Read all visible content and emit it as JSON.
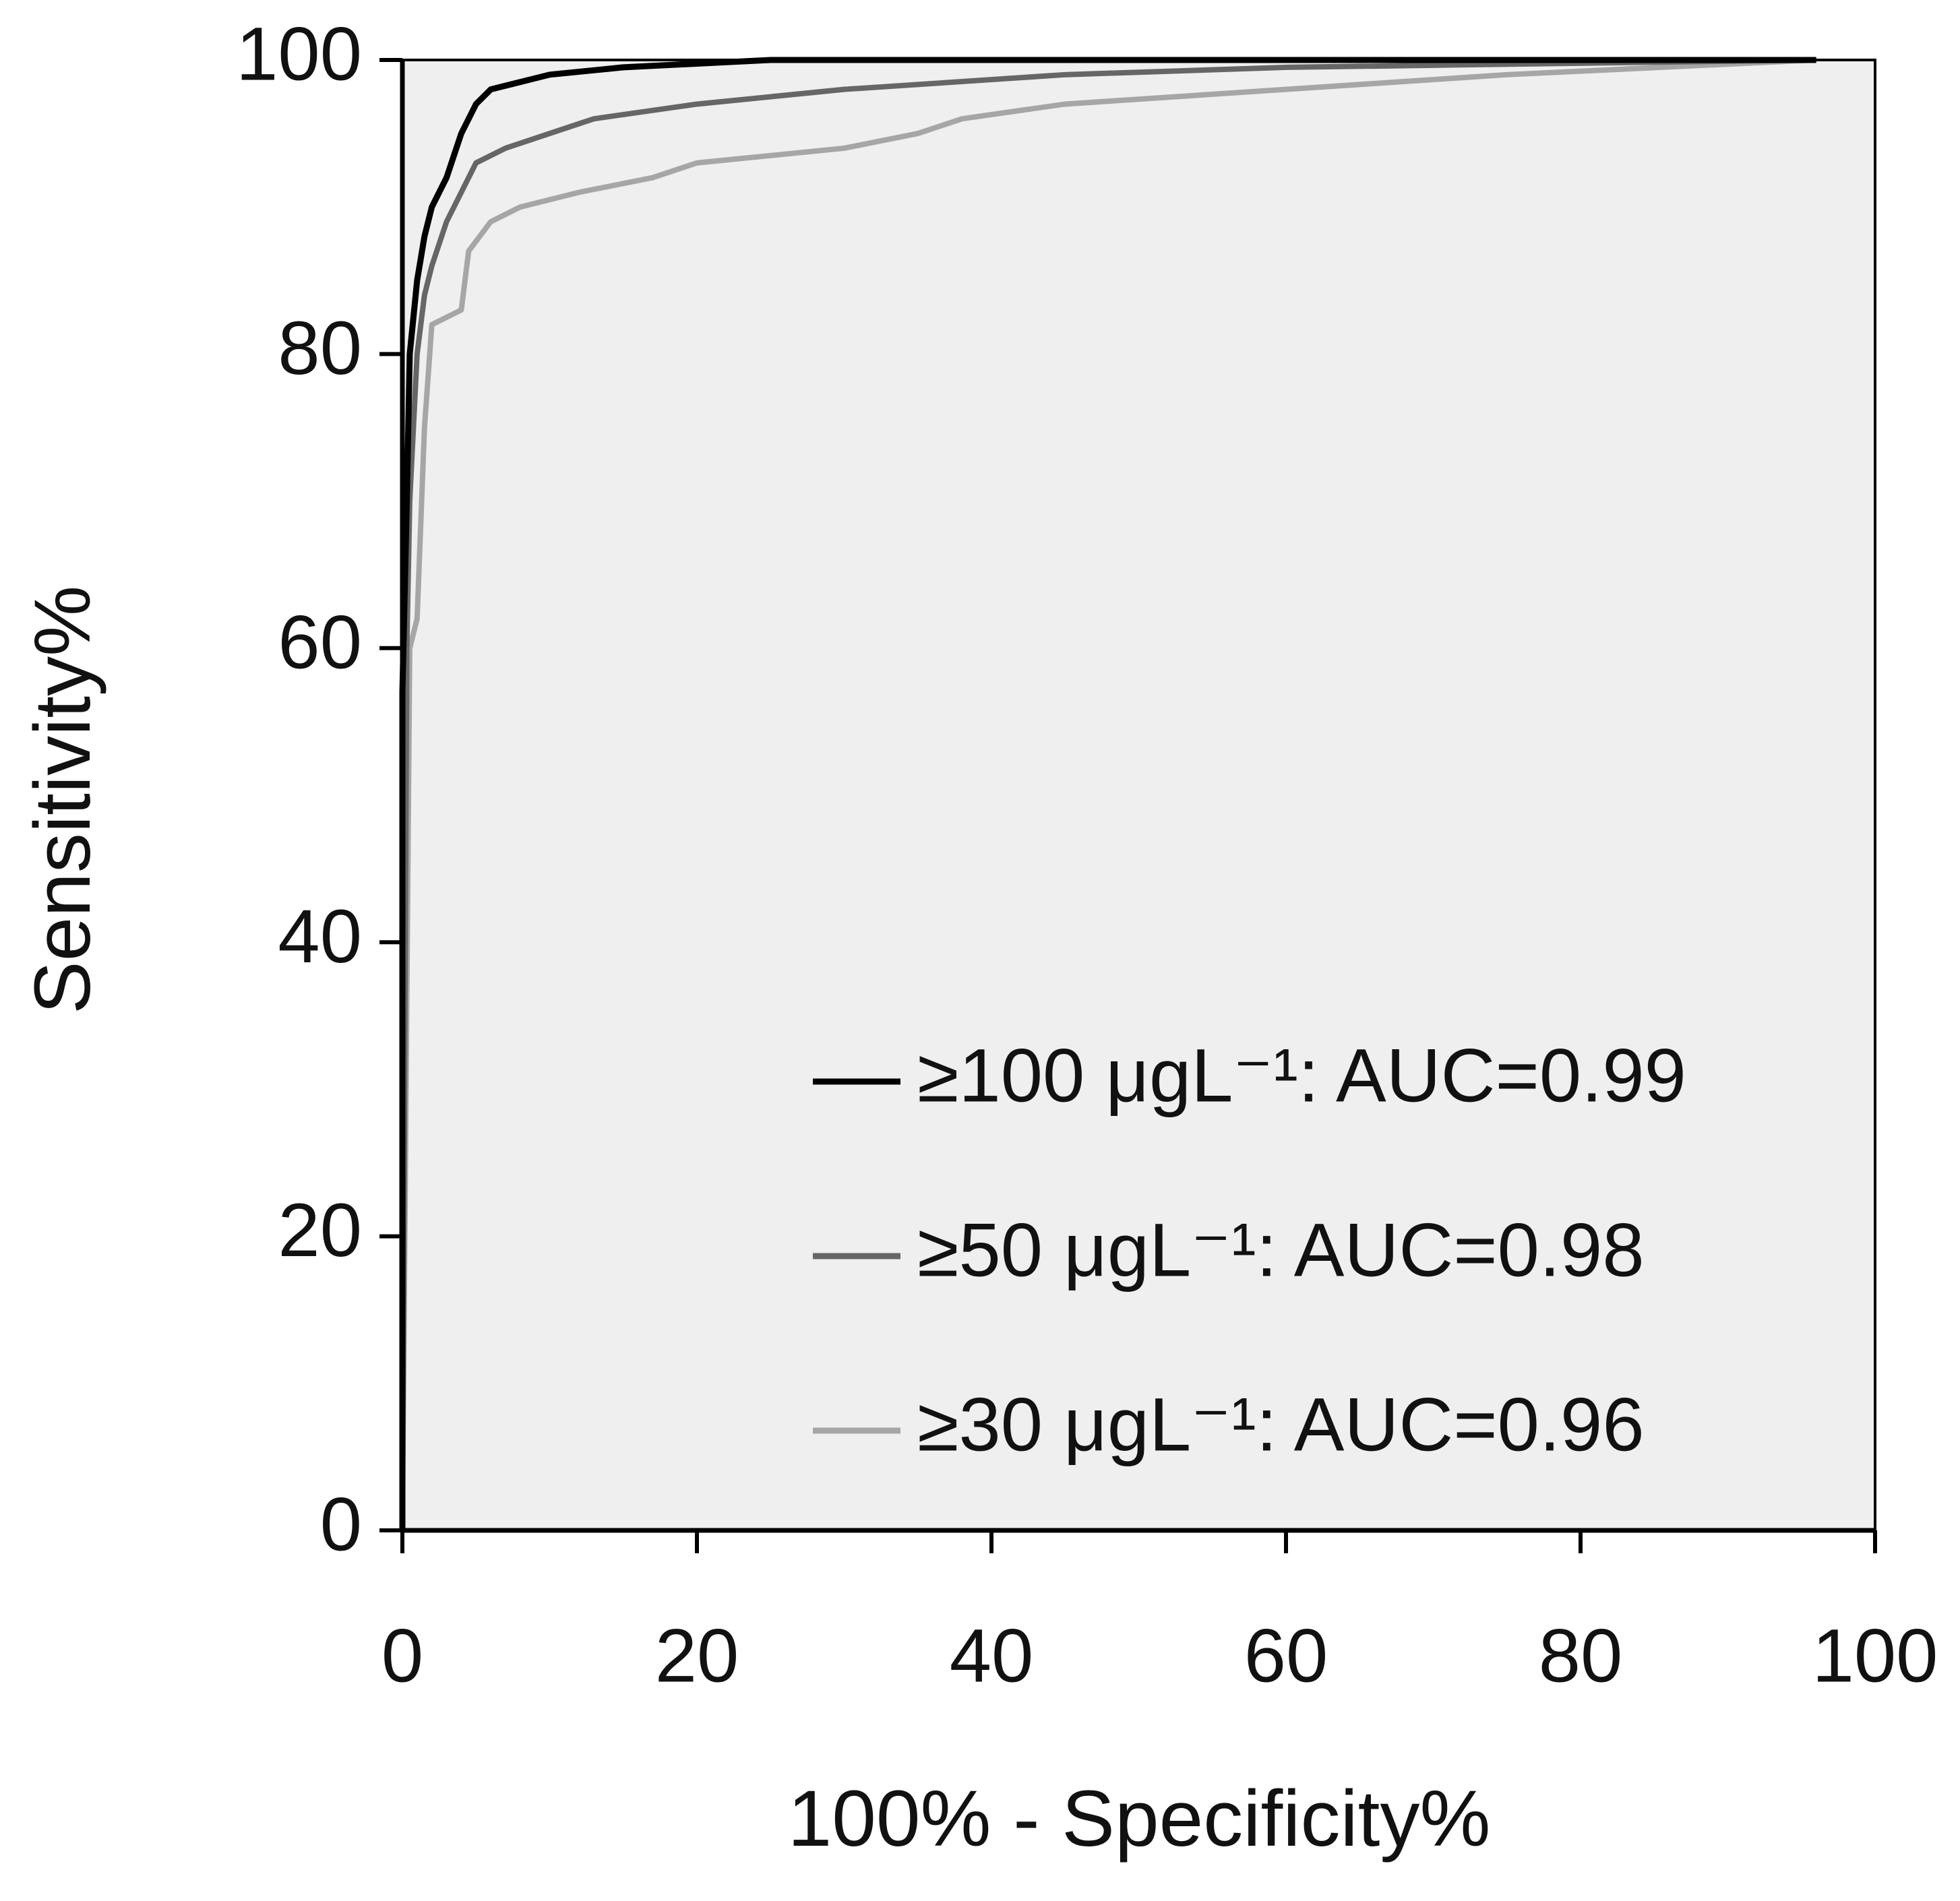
{
  "chart_data": {
    "type": "line",
    "x_label": "100% - Specificity%",
    "y_label": "Sensitivity%",
    "xlim": [
      0,
      100
    ],
    "xticks": [
      0,
      20,
      40,
      60,
      80,
      100
    ],
    "ylim": [
      0,
      100
    ],
    "yticks": [
      0,
      20,
      40,
      60,
      80,
      100
    ],
    "legend": "lower right",
    "background": "#efefef",
    "series": [
      {
        "name": "≥100 μgL⁻¹: AUC=0.99",
        "color": "#000000",
        "x": [
          0,
          0,
          0.3,
          0.5,
          1,
          1.5,
          2,
          3,
          4,
          5,
          6,
          8,
          10,
          15,
          25,
          96
        ],
        "values": [
          0,
          57,
          70,
          80,
          85,
          88,
          90,
          92,
          95,
          97,
          98,
          98.5,
          99,
          99.5,
          100,
          100
        ]
      },
      {
        "name": "≥50 μgL⁻¹: AUC=0.98",
        "color": "#666666",
        "x": [
          0,
          0.3,
          0.5,
          1,
          1.5,
          2,
          3,
          4,
          5,
          7,
          10,
          13,
          20,
          30,
          45,
          60,
          96
        ],
        "values": [
          0,
          60,
          70,
          80,
          84,
          86,
          89,
          91,
          93,
          94,
          95,
          96,
          97,
          98,
          99,
          99.5,
          100
        ]
      },
      {
        "name": "≥30 μgL⁻¹: AUC=0.96",
        "color": "#a6a6a6",
        "x": [
          0,
          0.5,
          1,
          1.5,
          2,
          4,
          4.5,
          6,
          8,
          12,
          17,
          20,
          30,
          35,
          38,
          45,
          60,
          75,
          96
        ],
        "values": [
          0,
          60,
          62,
          75,
          82,
          83,
          87,
          89,
          90,
          91,
          92,
          93,
          94,
          95,
          96,
          97,
          98,
          99,
          100
        ]
      }
    ]
  }
}
